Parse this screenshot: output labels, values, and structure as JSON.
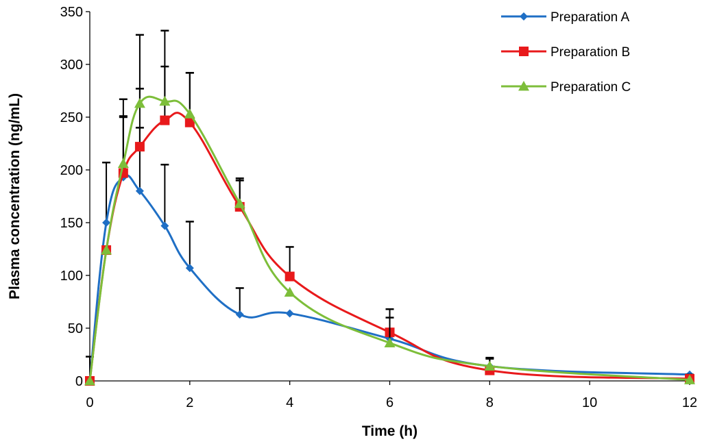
{
  "chart_data": {
    "type": "line",
    "title": "",
    "xlabel": "Time (h)",
    "ylabel": "Plasma concentration (ng/mL)",
    "xlim": [
      0,
      12
    ],
    "ylim": [
      0,
      350
    ],
    "xticks": [
      0,
      2,
      4,
      6,
      8,
      10,
      12
    ],
    "yticks": [
      0,
      50,
      100,
      150,
      200,
      250,
      300,
      350
    ],
    "grid": false,
    "legend_position": "top-right",
    "error_bars": "upper",
    "series": [
      {
        "name": "Preparation A",
        "color": "#1F6FC5",
        "marker": "diamond",
        "x": [
          0,
          0.33,
          0.67,
          1,
          1.5,
          2,
          3,
          4,
          6,
          8,
          12
        ],
        "y": [
          0,
          150,
          193,
          180,
          147,
          107,
          63,
          64,
          40,
          14,
          6
        ],
        "err": [
          23,
          57,
          57,
          60,
          58,
          44,
          25,
          0,
          0,
          0,
          0
        ]
      },
      {
        "name": "Preparation B",
        "color": "#E8191B",
        "marker": "square",
        "x": [
          0,
          0.33,
          0.67,
          1,
          1.5,
          2,
          3,
          4,
          6,
          8,
          12
        ],
        "y": [
          0,
          124,
          197,
          222,
          247,
          245,
          165,
          99,
          46,
          10,
          2
        ],
        "err": [
          0,
          0,
          54,
          55,
          51,
          47,
          27,
          28,
          22,
          11,
          4
        ]
      },
      {
        "name": "Preparation C",
        "color": "#7DBE3A",
        "marker": "triangle",
        "x": [
          0,
          0.33,
          0.67,
          1,
          1.5,
          2,
          3,
          4,
          6,
          8,
          12
        ],
        "y": [
          0,
          124,
          206,
          263,
          265,
          253,
          168,
          84,
          36,
          14,
          1
        ],
        "err": [
          0,
          0,
          61,
          65,
          67,
          39,
          22,
          0,
          24,
          8,
          0
        ]
      }
    ]
  }
}
